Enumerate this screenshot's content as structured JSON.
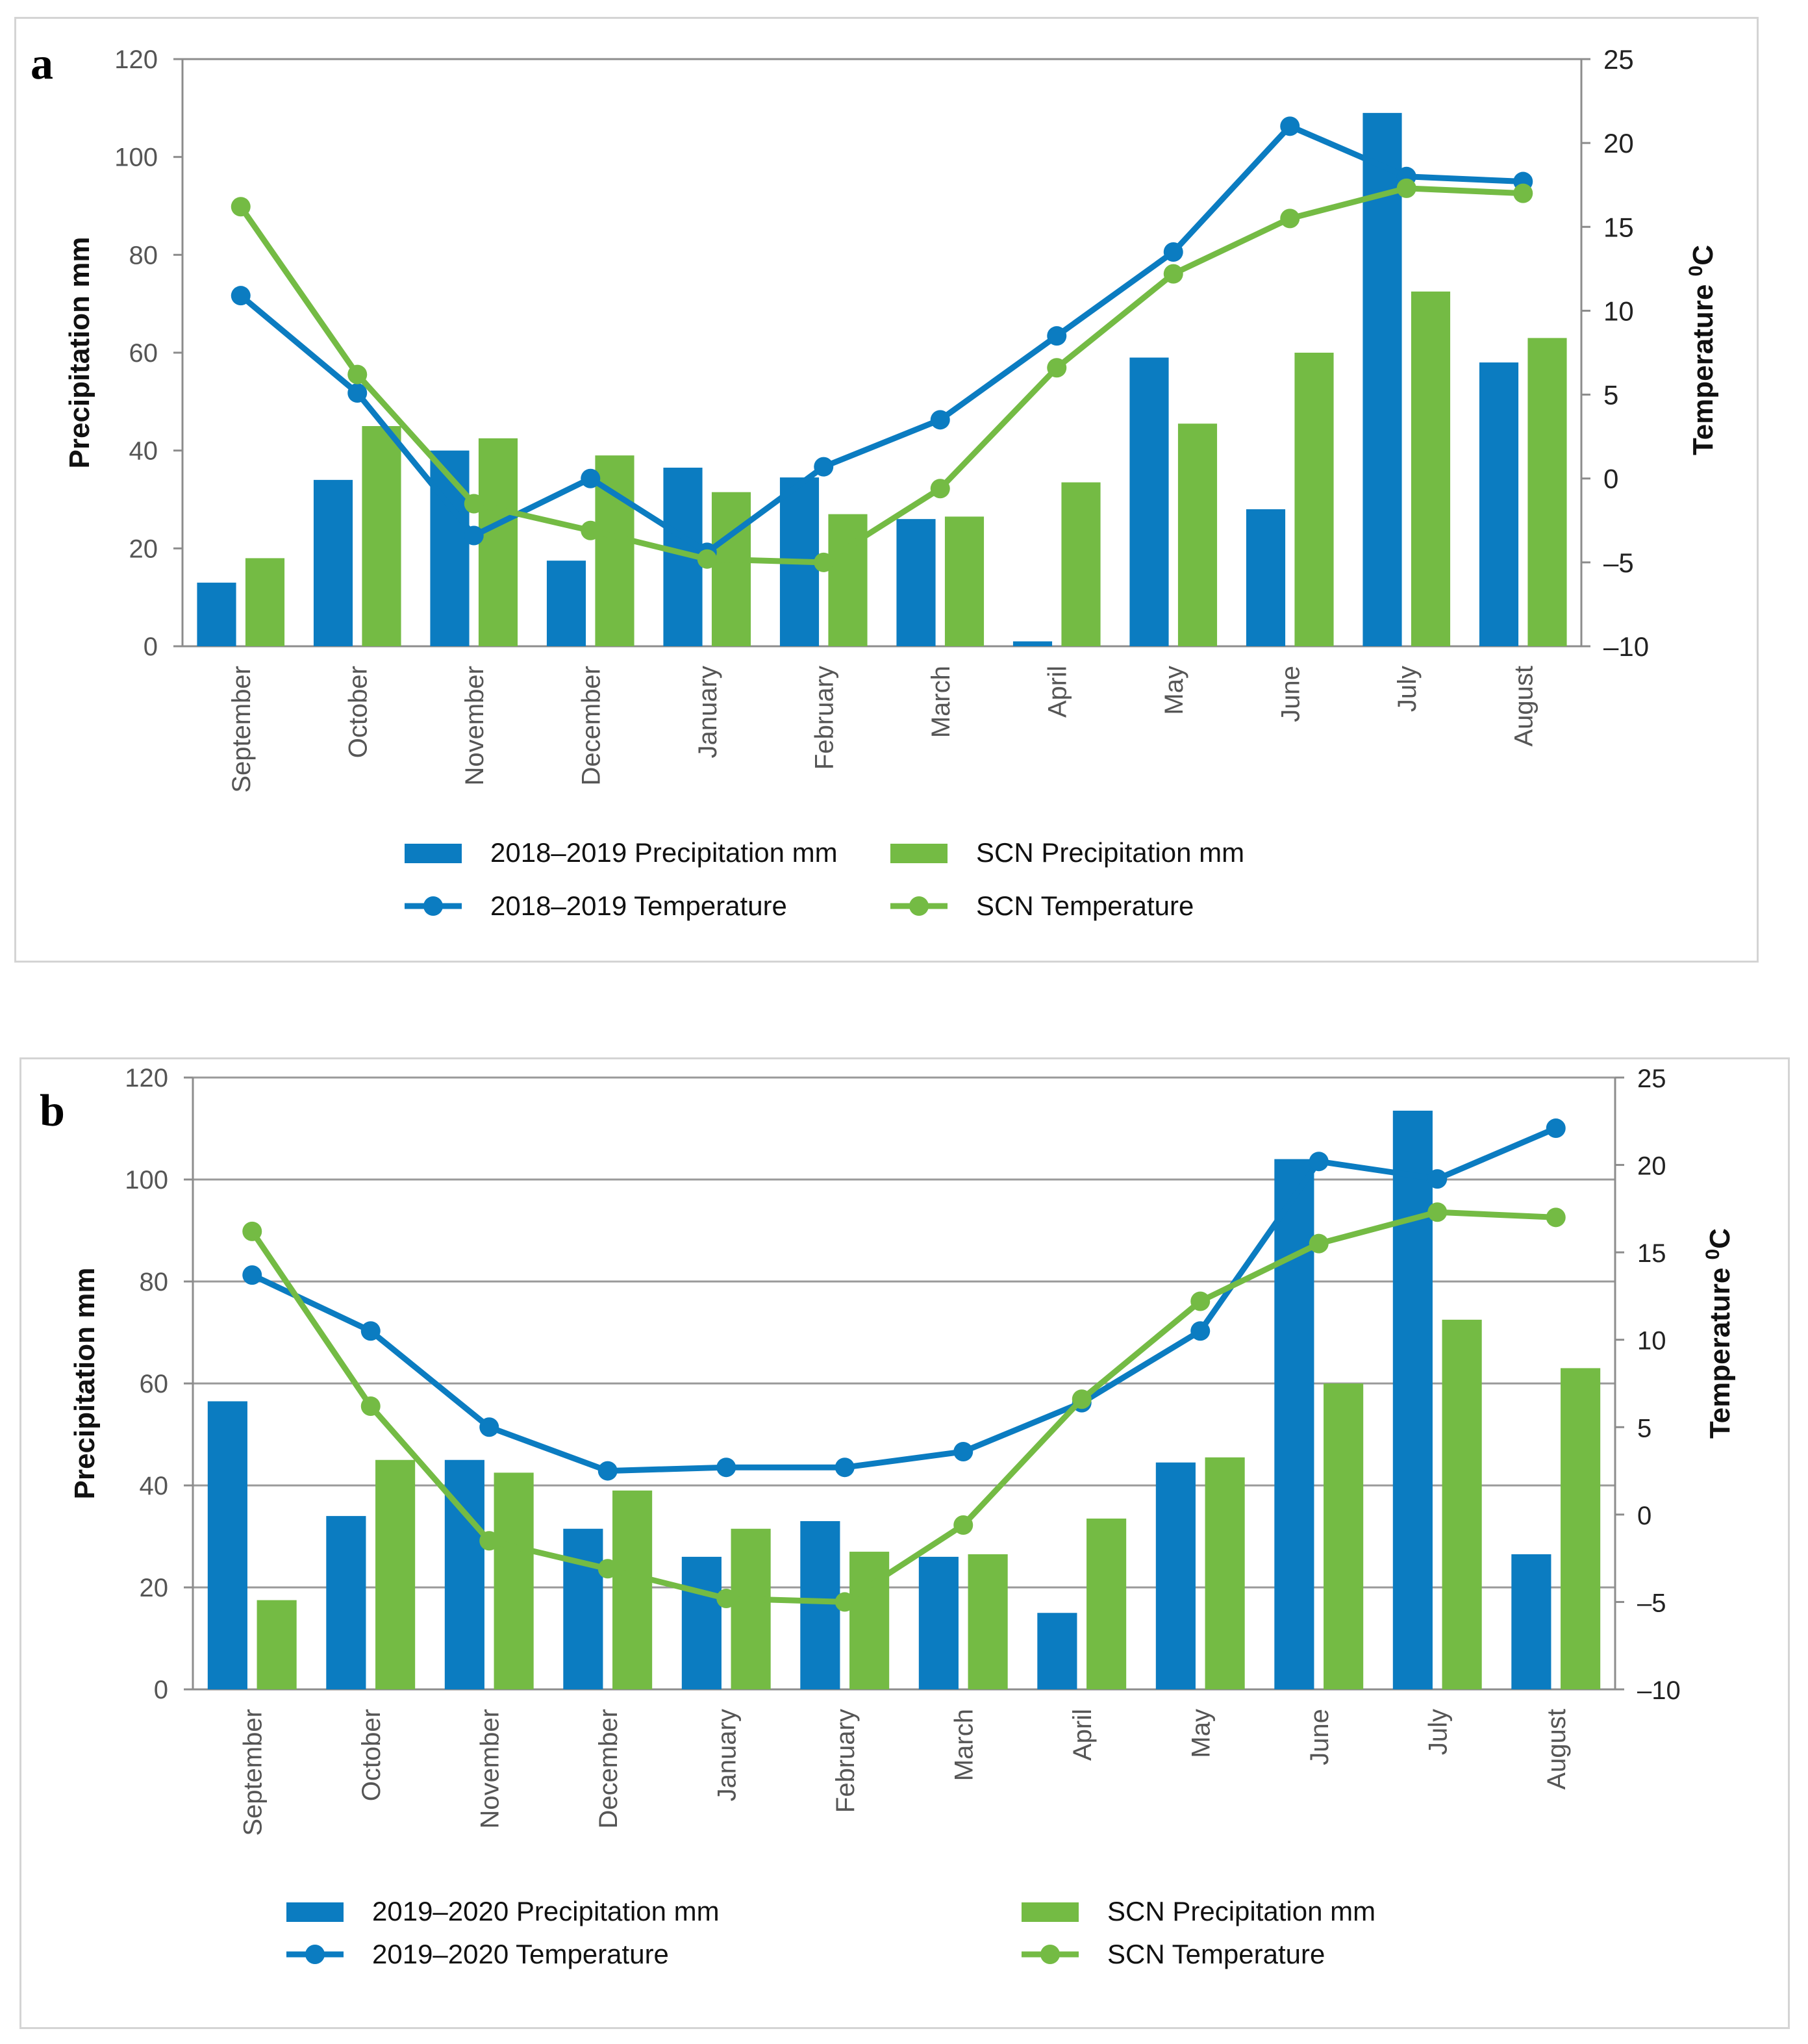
{
  "colors": {
    "series_primary": "#0b7cc1",
    "series_scn": "#74bb44",
    "axis": "#8c8c8c",
    "grid": "#9a9a9a"
  },
  "chart_data": [
    {
      "panel_label": "a",
      "type": "bar",
      "categories": [
        "September",
        "October",
        "November",
        "December",
        "January",
        "February",
        "March",
        "April",
        "May",
        "June",
        "July",
        "August"
      ],
      "series": [
        {
          "name": "2018–2019 Precipitation mm",
          "kind": "bar",
          "axis": "left",
          "color": "#0b7cc1",
          "values": [
            13,
            34,
            40,
            17.5,
            36.5,
            34.5,
            26,
            1,
            59,
            28,
            109,
            58
          ]
        },
        {
          "name": "SCN Precipitation mm",
          "kind": "bar",
          "axis": "left",
          "color": "#74bb44",
          "values": [
            18,
            45,
            42.5,
            39,
            31.5,
            27,
            26.5,
            33.5,
            45.5,
            60,
            72.5,
            63
          ]
        },
        {
          "name": "2018–2019 Temperature",
          "kind": "line",
          "axis": "right",
          "color": "#0b7cc1",
          "values": [
            10.9,
            5.1,
            -3.4,
            0,
            -4.4,
            0.7,
            3.5,
            8.5,
            13.5,
            21,
            18,
            17.7
          ]
        },
        {
          "name": "SCN Temperature",
          "kind": "line",
          "axis": "right",
          "color": "#74bb44",
          "values": [
            16.2,
            6.2,
            -1.5,
            -3.1,
            -4.8,
            -5,
            -0.6,
            6.6,
            12.2,
            15.5,
            17.3,
            17
          ]
        }
      ],
      "ylabel": "Precipitation mm",
      "y2label_main": "Temperature ",
      "y2label_sup": "0",
      "y2label_unit": "C",
      "ylim": [
        0,
        120
      ],
      "yticks": [
        0,
        20,
        40,
        60,
        80,
        100,
        120
      ],
      "y2lim": [
        -10,
        25
      ],
      "y2ticks": [
        25,
        20,
        15,
        10,
        5,
        0,
        -5,
        -10
      ],
      "y2ticklabels": [
        "25",
        "20",
        "15",
        "10",
        "5",
        "0",
        "–5",
        "–10"
      ],
      "grid": false,
      "legend": {
        "position": "bottom",
        "items": [
          "2018–2019 Precipitation mm",
          "SCN Precipitation mm",
          "2018–2019 Temperature",
          "SCN Temperature"
        ]
      }
    },
    {
      "panel_label": "b",
      "type": "bar",
      "categories": [
        "September",
        "October",
        "November",
        "December",
        "January",
        "February",
        "March",
        "April",
        "May",
        "June",
        "July",
        "August"
      ],
      "series": [
        {
          "name": "2019–2020 Precipitation mm",
          "kind": "bar",
          "axis": "left",
          "color": "#0b7cc1",
          "values": [
            56.5,
            34,
            45,
            31.5,
            26,
            33,
            26,
            15,
            44.5,
            104,
            113.5,
            26.5
          ]
        },
        {
          "name": "SCN Precipitation mm",
          "kind": "bar",
          "axis": "left",
          "color": "#74bb44",
          "values": [
            17.5,
            45,
            42.5,
            39,
            31.5,
            27,
            26.5,
            33.5,
            45.5,
            60,
            72.5,
            63
          ]
        },
        {
          "name": "2019–2020 Temperature",
          "kind": "line",
          "axis": "right",
          "color": "#0b7cc1",
          "values": [
            13.7,
            10.5,
            5,
            2.5,
            2.7,
            2.7,
            3.6,
            6.4,
            10.5,
            20.2,
            19.2,
            22.1
          ]
        },
        {
          "name": "SCN Temperature",
          "kind": "line",
          "axis": "right",
          "color": "#74bb44",
          "values": [
            16.2,
            6.2,
            -1.5,
            -3.1,
            -4.8,
            -5,
            -0.6,
            6.6,
            12.2,
            15.5,
            17.3,
            17
          ]
        }
      ],
      "ylabel": "Precipitation mm",
      "y2label_main": "Temperature ",
      "y2label_sup": "0",
      "y2label_unit": "C",
      "ylim": [
        0,
        120
      ],
      "yticks": [
        0,
        20,
        40,
        60,
        80,
        100,
        120
      ],
      "y2lim": [
        -10,
        25
      ],
      "y2ticks": [
        25,
        20,
        15,
        10,
        5,
        0,
        -5,
        -10
      ],
      "y2ticklabels": [
        "25",
        "20",
        "15",
        "10",
        "5",
        "0",
        "–5",
        "–10"
      ],
      "grid": true,
      "legend": {
        "position": "bottom",
        "items": [
          "2019–2020 Precipitation mm",
          "SCN Precipitation mm",
          "2019–2020 Temperature",
          "SCN Temperature"
        ]
      }
    }
  ]
}
